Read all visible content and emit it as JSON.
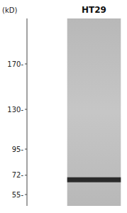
{
  "chart_data": {
    "type": "blot",
    "title": "HT29",
    "ylabel": "(kD)",
    "values": [
      68
    ],
    "color": "#1a1a1a",
    "ylim": [
      45,
      210
    ],
    "yticks": [
      {
        "value": 170,
        "label": "170-"
      },
      {
        "value": 130,
        "label": "130-"
      },
      {
        "value": 95,
        "label": "95-"
      },
      {
        "value": 72,
        "label": "72-"
      },
      {
        "value": 55,
        "label": "55-"
      }
    ],
    "tick_labels": "y"
  }
}
